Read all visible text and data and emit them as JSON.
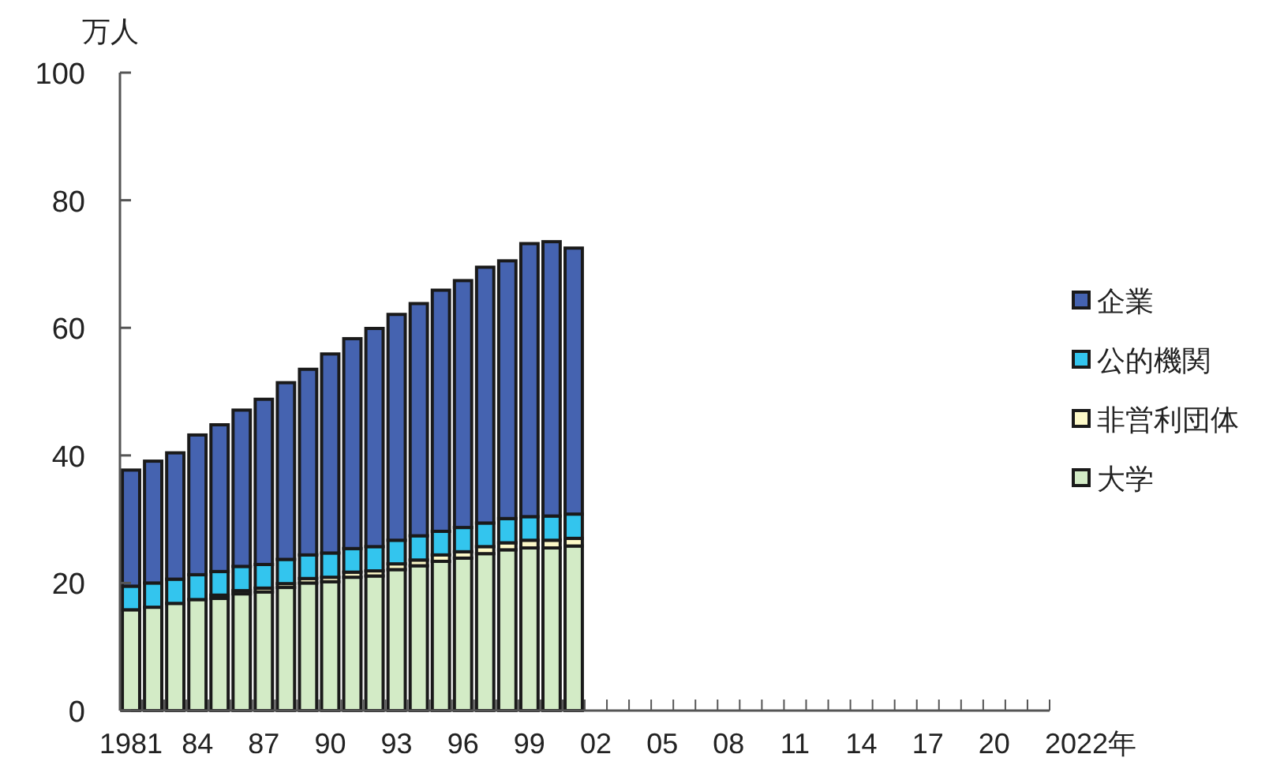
{
  "chart_data": {
    "type": "bar",
    "stacked": true,
    "ylabel": "万人",
    "ylim": [
      0,
      100
    ],
    "yticks": [
      0,
      20,
      40,
      60,
      80,
      100
    ],
    "legend": "right",
    "grid": false,
    "categories": [
      "1981",
      null,
      null,
      "84",
      null,
      null,
      "87",
      null,
      null,
      "90",
      null,
      null,
      "93",
      null,
      null,
      "96",
      null,
      null,
      "99",
      null,
      null,
      "02",
      null,
      null,
      "05",
      null,
      null,
      "08",
      null,
      null,
      "11",
      null,
      null,
      "14",
      null,
      null,
      "17",
      null,
      null,
      "20",
      null,
      "2022年"
    ],
    "series": [
      {
        "name": "大学",
        "color": "#d3ebc6",
        "values": [
          15.8,
          16.2,
          16.8,
          17.4,
          17.6,
          18.3,
          18.6,
          19.3,
          20.0,
          20.2,
          20.9,
          21.1,
          22.1,
          22.7,
          23.4,
          23.9,
          24.6,
          25.2,
          25.5,
          25.5,
          25.8,
          null,
          null,
          null,
          null,
          null,
          null,
          null,
          null,
          null,
          null,
          null,
          null,
          null,
          null,
          null,
          null,
          null,
          null,
          null,
          null,
          null
        ]
      },
      {
        "name": "非営利団体",
        "color": "#fdf9c8",
        "values": [
          null,
          null,
          null,
          null,
          0.5,
          0.5,
          0.6,
          0.6,
          0.7,
          0.7,
          0.8,
          0.8,
          0.9,
          0.9,
          1.0,
          1.0,
          1.1,
          1.1,
          1.2,
          1.2,
          1.2,
          null,
          null,
          null,
          null,
          null,
          null,
          null,
          null,
          null,
          null,
          null,
          null,
          null,
          null,
          null,
          null,
          null,
          null,
          null,
          null,
          null
        ]
      },
      {
        "name": "公的機関",
        "color": "#33c5ee",
        "values": [
          3.7,
          3.8,
          3.8,
          3.9,
          3.7,
          3.8,
          3.7,
          3.8,
          3.7,
          3.8,
          3.7,
          3.8,
          3.7,
          3.8,
          3.7,
          3.8,
          3.7,
          3.8,
          3.7,
          3.8,
          3.8,
          null,
          null,
          null,
          null,
          null,
          null,
          null,
          null,
          null,
          null,
          null,
          null,
          null,
          null,
          null,
          null,
          null,
          null,
          null,
          null,
          null
        ]
      },
      {
        "name": "企業",
        "color": "#4563b0",
        "values": [
          18.2,
          19.1,
          19.8,
          21.9,
          23.0,
          24.5,
          25.9,
          27.7,
          29.1,
          31.2,
          32.9,
          34.2,
          35.4,
          36.4,
          37.8,
          38.7,
          40.1,
          40.4,
          42.8,
          43.0,
          41.7,
          null,
          null,
          null,
          null,
          null,
          null,
          null,
          null,
          null,
          null,
          null,
          null,
          null,
          null,
          null,
          null,
          null,
          null,
          null,
          null,
          null
        ]
      }
    ]
  }
}
